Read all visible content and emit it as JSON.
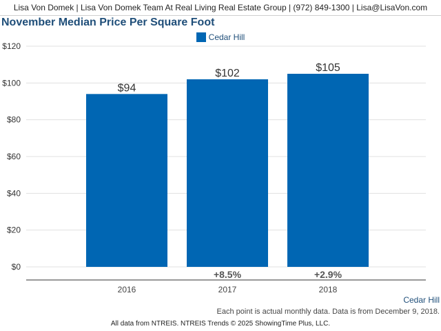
{
  "header": {
    "contact_line": "Lisa Von Domek | Lisa Von Domek Team At Real Living Real Estate Group | (972) 849-1300 | Lisa@LisaVon.com"
  },
  "chart_title": "November Median Price Per Square Foot",
  "legend": {
    "label": "Cedar Hill"
  },
  "footer": {
    "series_label": "Cedar Hill",
    "note": "Each point is actual monthly data. Data is from December 9, 2018.",
    "credit": "All data from NTREIS. NTREIS Trends © 2025 ShowingTime Plus, LLC."
  },
  "colors": {
    "bar": "#0066b3",
    "title": "#1f4e79"
  },
  "chart_data": {
    "type": "bar",
    "title": "November Median Price Per Square Foot",
    "categories": [
      "2016",
      "2017",
      "2018"
    ],
    "series": [
      {
        "name": "Cedar Hill",
        "values": [
          94,
          102,
          105
        ]
      }
    ],
    "value_labels": [
      "$94",
      "$102",
      "$105"
    ],
    "change_labels": [
      "",
      "+8.5%",
      "+2.9%"
    ],
    "yticks": [
      "$0",
      "$20",
      "$40",
      "$60",
      "$80",
      "$100",
      "$120"
    ],
    "ytick_values": [
      0,
      20,
      40,
      60,
      80,
      100,
      120
    ],
    "ylim": [
      0,
      120
    ],
    "grid": true,
    "legend_position": "top-center"
  }
}
